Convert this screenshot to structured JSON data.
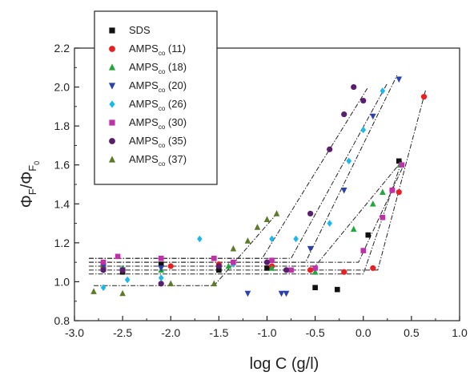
{
  "chart_data": {
    "type": "scatter",
    "xlabel": "log C (g/l)",
    "ylabel_main": "Φ",
    "ylabel_sub1": "F",
    "ylabel_sep": "/Φ",
    "ylabel_sub2": "F",
    "ylabel_sub2_sub": "0",
    "xlim": [
      -3.0,
      1.0
    ],
    "ylim": [
      0.8,
      2.2
    ],
    "xticks": [
      -3.0,
      -2.5,
      -2.0,
      -1.5,
      -1.0,
      -0.5,
      0.0,
      0.5,
      1.0
    ],
    "xtick_labels": [
      "-3.0",
      "-2.5",
      "-2.0",
      "-1.5",
      "-1.0",
      "-0.5",
      "0.0",
      "0.5",
      "1.0"
    ],
    "yticks": [
      0.8,
      1.0,
      1.2,
      1.4,
      1.6,
      1.8,
      2.0,
      2.2
    ],
    "ytick_labels": [
      "0.8",
      "1.0",
      "1.2",
      "1.4",
      "1.6",
      "1.8",
      "2.0",
      "2.2"
    ],
    "legend_position": "top-left",
    "series": [
      {
        "name": "SDS",
        "name_base": "SDS",
        "name_sub": "",
        "name_suffix": "",
        "marker": "square",
        "color": "#111111",
        "points": [
          [
            -2.7,
            1.08
          ],
          [
            -2.5,
            1.05
          ],
          [
            -2.1,
            1.09
          ],
          [
            -1.5,
            1.06
          ],
          [
            -1.0,
            1.07
          ],
          [
            -0.5,
            0.97
          ],
          [
            -0.27,
            0.96
          ],
          [
            0.05,
            1.24
          ],
          [
            0.37,
            1.62
          ]
        ],
        "fit": [
          [
            -2.85,
            1.04
          ],
          [
            0.0,
            1.04
          ],
          [
            0.4,
            1.62
          ]
        ]
      },
      {
        "name": "AMPSco (11)",
        "name_base": "AMPS",
        "name_sub": "co",
        "name_suffix": " (11)",
        "marker": "circle",
        "color": "#e82020",
        "points": [
          [
            -2.7,
            1.07
          ],
          [
            -2.5,
            1.06
          ],
          [
            -2.0,
            1.08
          ],
          [
            -1.5,
            1.09
          ],
          [
            -0.95,
            1.08
          ],
          [
            -0.55,
            1.06
          ],
          [
            -0.2,
            1.05
          ],
          [
            0.1,
            1.07
          ],
          [
            0.3,
            1.47
          ],
          [
            0.37,
            1.46
          ],
          [
            0.63,
            1.95
          ]
        ],
        "fit": [
          [
            -2.85,
            1.06
          ],
          [
            0.15,
            1.06
          ],
          [
            0.65,
            1.99
          ]
        ]
      },
      {
        "name": "AMPSco (18)",
        "name_base": "AMPS",
        "name_sub": "co",
        "name_suffix": " (18)",
        "marker": "triangle-up",
        "color": "#22a83a",
        "points": [
          [
            -2.7,
            1.09
          ],
          [
            -2.5,
            1.07
          ],
          [
            -2.1,
            1.06
          ],
          [
            -1.4,
            1.08
          ],
          [
            -0.95,
            1.07
          ],
          [
            -0.5,
            1.05
          ],
          [
            -0.1,
            1.27
          ],
          [
            0.1,
            1.4
          ],
          [
            0.2,
            1.46
          ],
          [
            0.38,
            1.6
          ]
        ],
        "fit": [
          [
            -2.85,
            1.08
          ],
          [
            -0.5,
            1.08
          ],
          [
            0.4,
            1.62
          ]
        ]
      },
      {
        "name": "AMPSco (20)",
        "name_base": "AMPS",
        "name_sub": "co",
        "name_suffix": " (20)",
        "marker": "triangle-down",
        "color": "#2a40b0",
        "points": [
          [
            -2.7,
            1.08
          ],
          [
            -2.5,
            1.06
          ],
          [
            -2.1,
            1.07
          ],
          [
            -1.2,
            0.94
          ],
          [
            -0.85,
            0.94
          ],
          [
            -0.8,
            0.94
          ],
          [
            -0.55,
            1.17
          ],
          [
            -0.2,
            1.47
          ],
          [
            0.1,
            1.85
          ],
          [
            0.37,
            2.04
          ]
        ],
        "fit": [
          [
            -2.85,
            1.1
          ],
          [
            -0.6,
            1.1
          ],
          [
            0.35,
            2.06
          ]
        ]
      },
      {
        "name": "AMPSco (26)",
        "name_base": "AMPS",
        "name_sub": "co",
        "name_suffix": " (26)",
        "marker": "diamond",
        "color": "#1ab8ec",
        "points": [
          [
            -2.7,
            0.97
          ],
          [
            -2.45,
            1.01
          ],
          [
            -2.1,
            1.02
          ],
          [
            -1.7,
            1.22
          ],
          [
            -1.35,
            1.09
          ],
          [
            -0.95,
            1.22
          ],
          [
            -0.7,
            1.22
          ],
          [
            -0.35,
            1.3
          ],
          [
            -0.15,
            1.62
          ],
          [
            0.0,
            1.78
          ],
          [
            0.2,
            1.98
          ]
        ],
        "fit": [
          [
            -2.85,
            1.12
          ],
          [
            -0.75,
            1.12
          ],
          [
            0.25,
            2.02
          ]
        ]
      },
      {
        "name": "AMPSco (30)",
        "name_base": "AMPS",
        "name_sub": "co",
        "name_suffix": " (30)",
        "marker": "square",
        "color": "#c030a8",
        "points": [
          [
            -2.7,
            1.1
          ],
          [
            -2.55,
            1.13
          ],
          [
            -2.1,
            1.12
          ],
          [
            -1.55,
            1.12
          ],
          [
            -1.35,
            1.1
          ],
          [
            -0.95,
            1.11
          ],
          [
            -0.75,
            1.06
          ],
          [
            -0.5,
            1.07
          ],
          [
            0.0,
            1.16
          ],
          [
            0.2,
            1.33
          ],
          [
            0.3,
            1.47
          ],
          [
            0.4,
            1.6
          ]
        ],
        "fit": [
          [
            -2.85,
            1.1
          ],
          [
            -0.05,
            1.1
          ],
          [
            0.42,
            1.6
          ]
        ]
      },
      {
        "name": "AMPSco (35)",
        "name_base": "AMPS",
        "name_sub": "co",
        "name_suffix": " (35)",
        "marker": "circle",
        "color": "#5a1e6e",
        "points": [
          [
            -2.7,
            1.06
          ],
          [
            -2.5,
            1.06
          ],
          [
            -2.1,
            0.99
          ],
          [
            -1.5,
            1.08
          ],
          [
            -1.0,
            1.1
          ],
          [
            -0.8,
            1.06
          ],
          [
            -0.55,
            1.35
          ],
          [
            -0.35,
            1.68
          ],
          [
            -0.2,
            1.86
          ],
          [
            -0.1,
            2.0
          ],
          [
            0.0,
            1.93
          ]
        ],
        "fit": [
          [
            -2.85,
            1.12
          ],
          [
            -1.05,
            1.12
          ],
          [
            0.05,
            2.0
          ]
        ]
      },
      {
        "name": "AMPSco (37)",
        "name_base": "AMPS",
        "name_sub": "co",
        "name_suffix": " (37)",
        "marker": "triangle-up",
        "color": "#5c7a28",
        "points": [
          [
            -2.8,
            0.95
          ],
          [
            -2.5,
            0.94
          ],
          [
            -2.0,
            0.99
          ],
          [
            -1.55,
            0.99
          ],
          [
            -1.35,
            1.17
          ],
          [
            -1.2,
            1.21
          ],
          [
            -1.1,
            1.28
          ],
          [
            -1.0,
            1.32
          ],
          [
            -0.9,
            1.35
          ]
        ],
        "fit": [
          [
            -2.8,
            0.98
          ],
          [
            -1.55,
            0.98
          ],
          [
            -0.88,
            1.36
          ]
        ]
      }
    ]
  }
}
